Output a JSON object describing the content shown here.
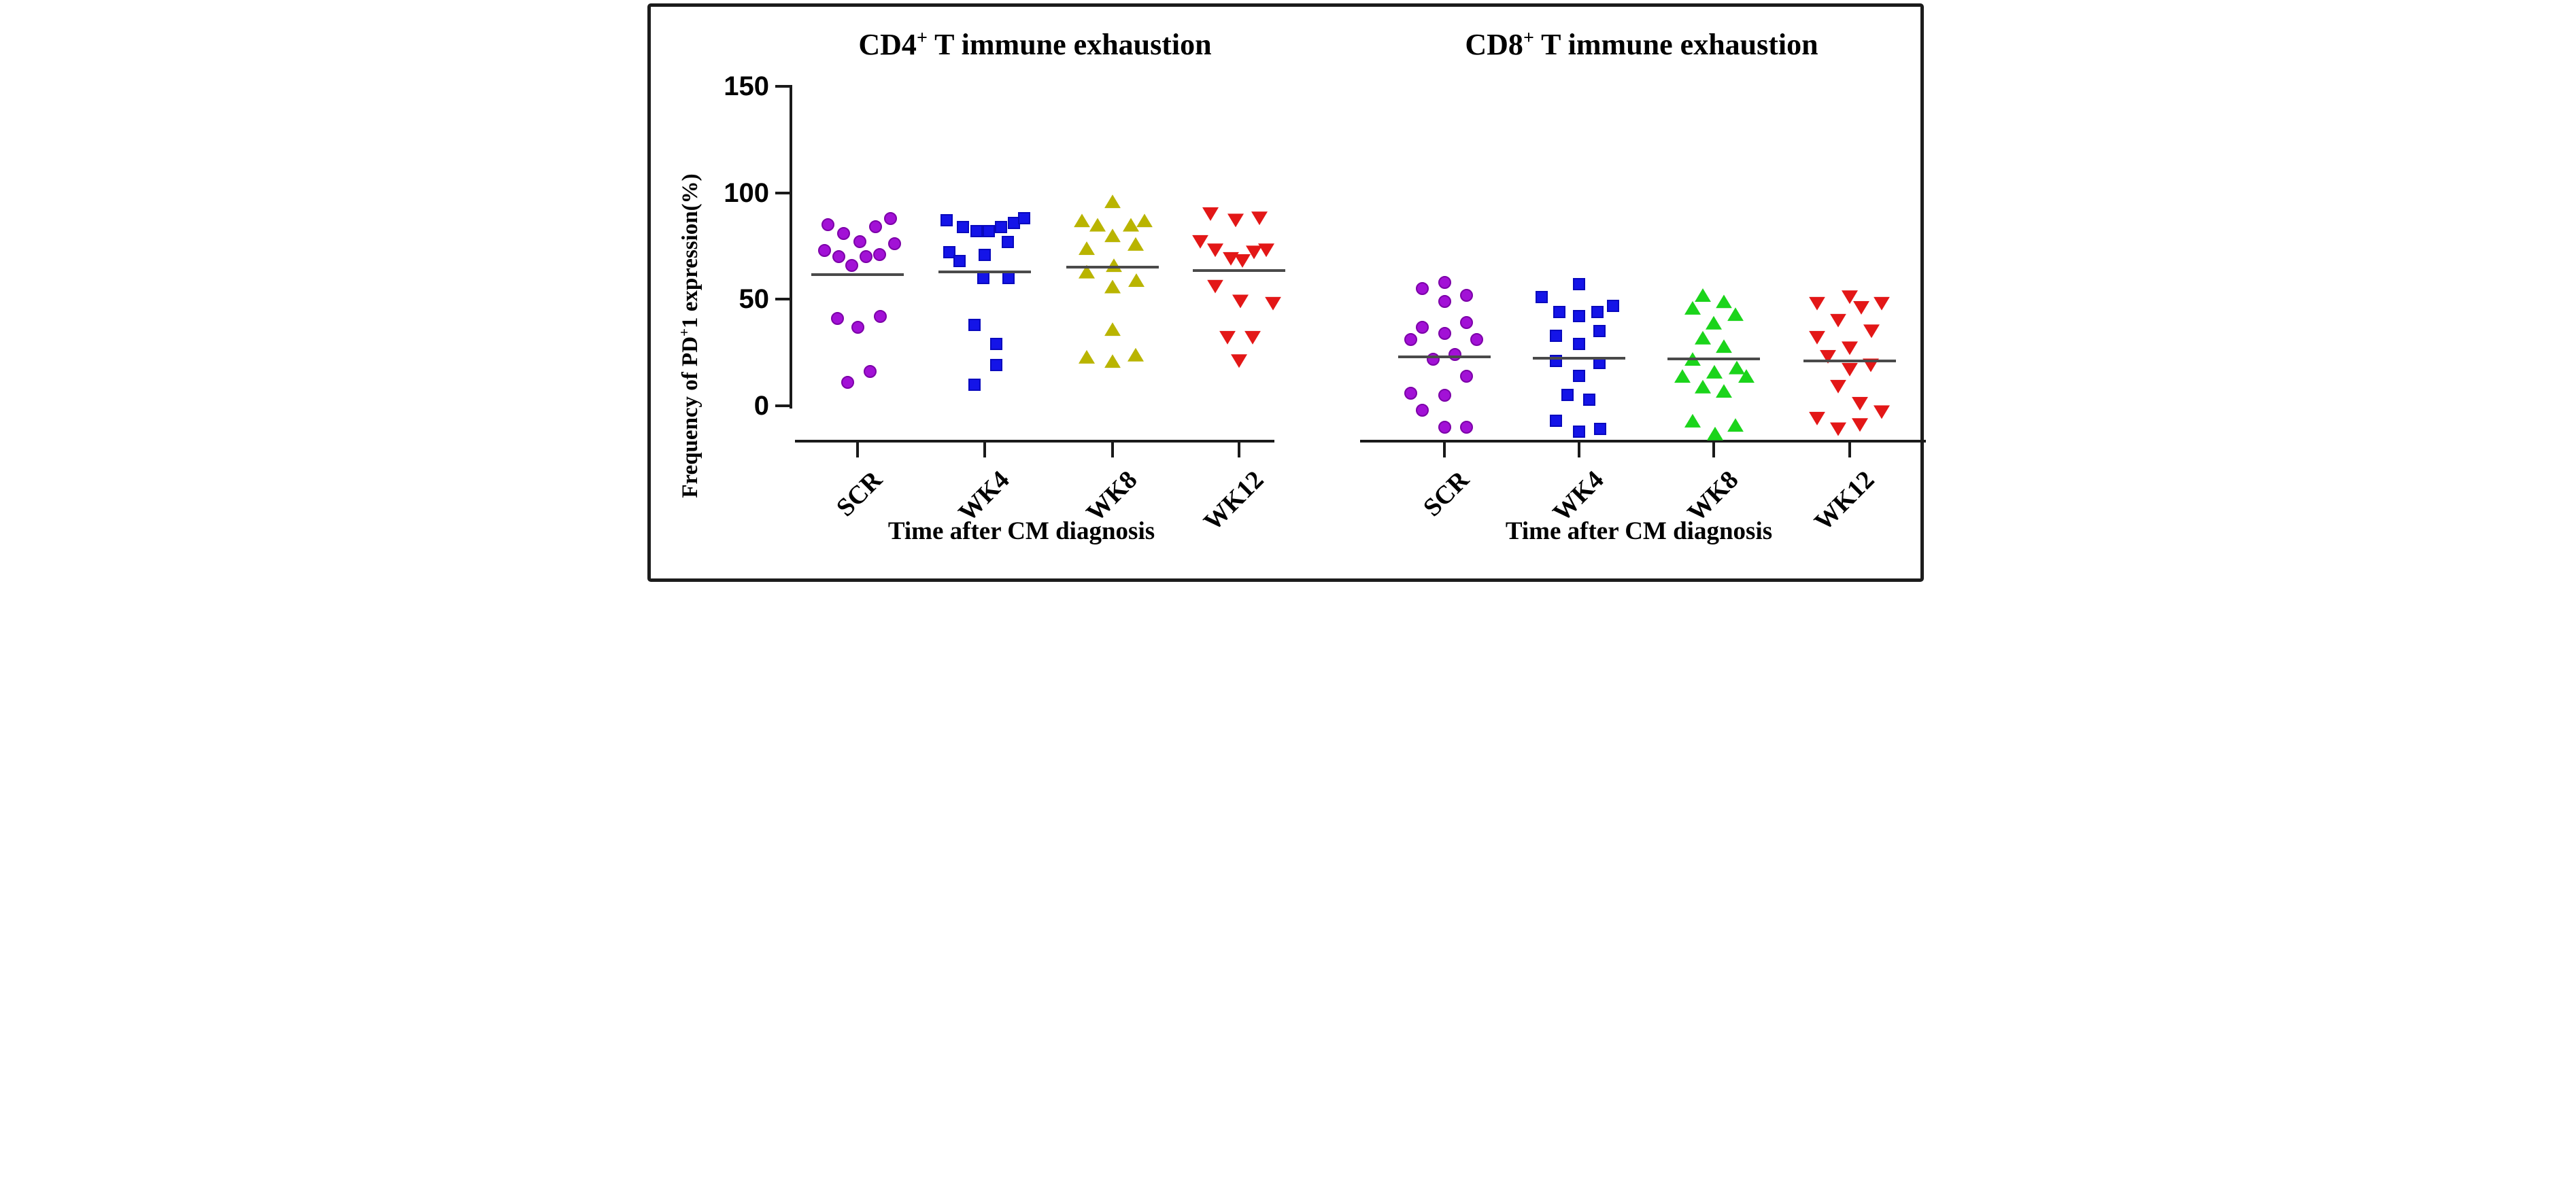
{
  "style": {
    "mean_line_color": "#4A4A4A",
    "axis_color": "#1A1A1A",
    "background": "#FFFFFF"
  },
  "y_axis": {
    "label_prefix": "Frequency of PD",
    "label_sup": "+",
    "label_suffix": "1 expression(%)",
    "ticks": [
      150,
      100,
      50,
      0
    ]
  },
  "chart_data": [
    {
      "type": "scatter",
      "title_prefix": "CD4",
      "title_sup": "+",
      "title_suffix": " T immune exhaustion",
      "xlabel": "Time after CM diagnosis",
      "ylabel": "Frequency of PD+1 expression(%)",
      "ylim": [
        0,
        150
      ],
      "yticks": [
        150,
        100,
        50,
        0
      ],
      "baseline_value": -16,
      "grid": false,
      "legend": "none",
      "categories": [
        "SCR",
        "WK4",
        "WK8",
        "WK12"
      ],
      "series": [
        {
          "name": "SCR",
          "marker": "circle",
          "color": "#A211D6",
          "edge": "#7C00A8",
          "mean": 61.5,
          "points": [
            [
              -44,
              85
            ],
            [
              -21,
              81
            ],
            [
              3,
              77
            ],
            [
              26,
              84
            ],
            [
              48,
              88
            ],
            [
              -49,
              73
            ],
            [
              -28,
              70
            ],
            [
              -9,
              66
            ],
            [
              12,
              70
            ],
            [
              32,
              71
            ],
            [
              54,
              76
            ],
            [
              -30,
              41
            ],
            [
              0,
              37
            ],
            [
              33,
              42
            ],
            [
              18,
              16
            ],
            [
              -15,
              11
            ]
          ]
        },
        {
          "name": "WK4",
          "marker": "square",
          "color": "#1414E8",
          "edge": "#0909BE",
          "mean": 63,
          "points": [
            [
              -56,
              87
            ],
            [
              -32,
              84
            ],
            [
              -12,
              82
            ],
            [
              6,
              82
            ],
            [
              24,
              84
            ],
            [
              43,
              86
            ],
            [
              58,
              88
            ],
            [
              34,
              77
            ],
            [
              -52,
              72
            ],
            [
              -37,
              68
            ],
            [
              0,
              71
            ],
            [
              -2,
              60
            ],
            [
              35,
              60
            ],
            [
              -15,
              38
            ],
            [
              17,
              29
            ],
            [
              17,
              19
            ],
            [
              -15,
              10
            ]
          ]
        },
        {
          "name": "WK8",
          "marker": "triangle-up",
          "color": "#B9B400",
          "edge": "#807C00",
          "mean": 65,
          "points": [
            [
              0,
              96
            ],
            [
              -45,
              87
            ],
            [
              -22,
              85
            ],
            [
              27,
              85
            ],
            [
              47,
              87
            ],
            [
              0,
              80
            ],
            [
              -38,
              74
            ],
            [
              34,
              76
            ],
            [
              2,
              66
            ],
            [
              -38,
              63
            ],
            [
              35,
              59
            ],
            [
              0,
              56
            ],
            [
              0,
              36
            ],
            [
              -38,
              23
            ],
            [
              0,
              21
            ],
            [
              34,
              24
            ]
          ]
        },
        {
          "name": "WK12",
          "marker": "triangle-down",
          "color": "#E31717",
          "edge": "#B00F0F",
          "mean": 63.5,
          "points": [
            [
              -42,
              90
            ],
            [
              -5,
              87
            ],
            [
              30,
              88
            ],
            [
              -57,
              77
            ],
            [
              -35,
              73
            ],
            [
              -12,
              69
            ],
            [
              5,
              68
            ],
            [
              22,
              72
            ],
            [
              40,
              73
            ],
            [
              -35,
              56
            ],
            [
              2,
              49
            ],
            [
              50,
              48
            ],
            [
              -17,
              32
            ],
            [
              20,
              32
            ],
            [
              0,
              21
            ]
          ]
        }
      ]
    },
    {
      "type": "scatter",
      "title_prefix": "CD8",
      "title_sup": "+",
      "title_suffix": " T immune exhaustion",
      "xlabel": "Time after CM diagnosis",
      "ylabel": "Frequency of PD+1 expression(%)",
      "ylim": [
        0,
        150
      ],
      "yticks": [
        150,
        100,
        50,
        0
      ],
      "baseline_value": -16,
      "grid": false,
      "legend": "none",
      "categories": [
        "SCR",
        "WK4",
        "WK8",
        "WK12"
      ],
      "series": [
        {
          "name": "SCR",
          "marker": "circle",
          "color": "#A211D6",
          "edge": "#7C00A8",
          "mean": 23,
          "points": [
            [
              0,
              58
            ],
            [
              -33,
              55
            ],
            [
              0,
              49
            ],
            [
              32,
              52
            ],
            [
              -33,
              37
            ],
            [
              0,
              34
            ],
            [
              32,
              39
            ],
            [
              -50,
              31
            ],
            [
              47,
              31
            ],
            [
              -17,
              22
            ],
            [
              15,
              24
            ],
            [
              32,
              14
            ],
            [
              -50,
              6
            ],
            [
              0,
              5
            ],
            [
              -33,
              -2
            ],
            [
              0,
              -10
            ],
            [
              32,
              -10
            ]
          ]
        },
        {
          "name": "WK4",
          "marker": "square",
          "color": "#1414E8",
          "edge": "#0909BE",
          "mean": 22.5,
          "points": [
            [
              0,
              57
            ],
            [
              -55,
              51
            ],
            [
              -29,
              44
            ],
            [
              0,
              42
            ],
            [
              27,
              44
            ],
            [
              50,
              47
            ],
            [
              -34,
              33
            ],
            [
              0,
              29
            ],
            [
              30,
              35
            ],
            [
              -34,
              21
            ],
            [
              30,
              20
            ],
            [
              0,
              14
            ],
            [
              -17,
              5
            ],
            [
              15,
              3
            ],
            [
              -34,
              -7
            ],
            [
              0,
              -12
            ],
            [
              31,
              -11
            ]
          ]
        },
        {
          "name": "WK8",
          "marker": "triangle-up",
          "color": "#1BD41B",
          "edge": "#0FA00F",
          "mean": 22,
          "points": [
            [
              -16,
              52
            ],
            [
              -31,
              46
            ],
            [
              15,
              49
            ],
            [
              32,
              43
            ],
            [
              0,
              39
            ],
            [
              -16,
              32
            ],
            [
              15,
              28
            ],
            [
              -31,
              22
            ],
            [
              -46,
              14
            ],
            [
              1,
              16
            ],
            [
              34,
              18
            ],
            [
              48,
              14
            ],
            [
              -16,
              9
            ],
            [
              15,
              7
            ],
            [
              -31,
              -7
            ],
            [
              2,
              -13
            ],
            [
              32,
              -9
            ]
          ]
        },
        {
          "name": "WK12",
          "marker": "triangle-down",
          "color": "#E31717",
          "edge": "#B00F0F",
          "mean": 21,
          "points": [
            [
              -48,
              48
            ],
            [
              0,
              51
            ],
            [
              17,
              46
            ],
            [
              47,
              48
            ],
            [
              -17,
              40
            ],
            [
              32,
              35
            ],
            [
              -48,
              32
            ],
            [
              0,
              27
            ],
            [
              -32,
              23
            ],
            [
              0,
              17
            ],
            [
              31,
              19
            ],
            [
              -17,
              9
            ],
            [
              15,
              1
            ],
            [
              47,
              -3
            ],
            [
              -48,
              -6
            ],
            [
              -17,
              -11
            ],
            [
              15,
              -9
            ]
          ]
        }
      ]
    }
  ]
}
